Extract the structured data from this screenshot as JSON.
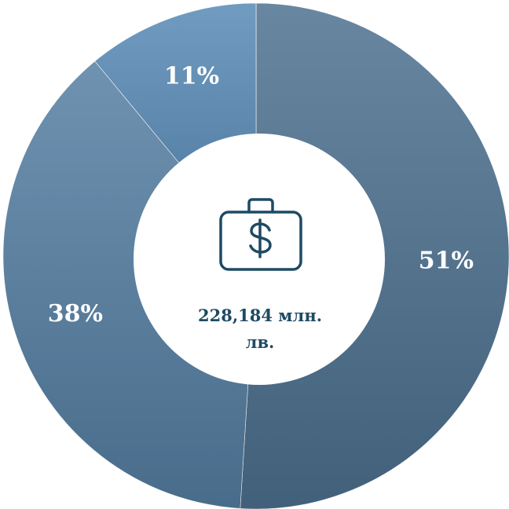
{
  "chart_data": {
    "type": "pie",
    "categories": [
      null,
      null,
      null
    ],
    "values": [
      51,
      38,
      11
    ],
    "value_labels": [
      "51%",
      "38%",
      "11%"
    ],
    "colors": [
      "#4d7190",
      "#557fa3",
      "#588ab6"
    ],
    "center_label": "228,184 млн. лв."
  }
}
